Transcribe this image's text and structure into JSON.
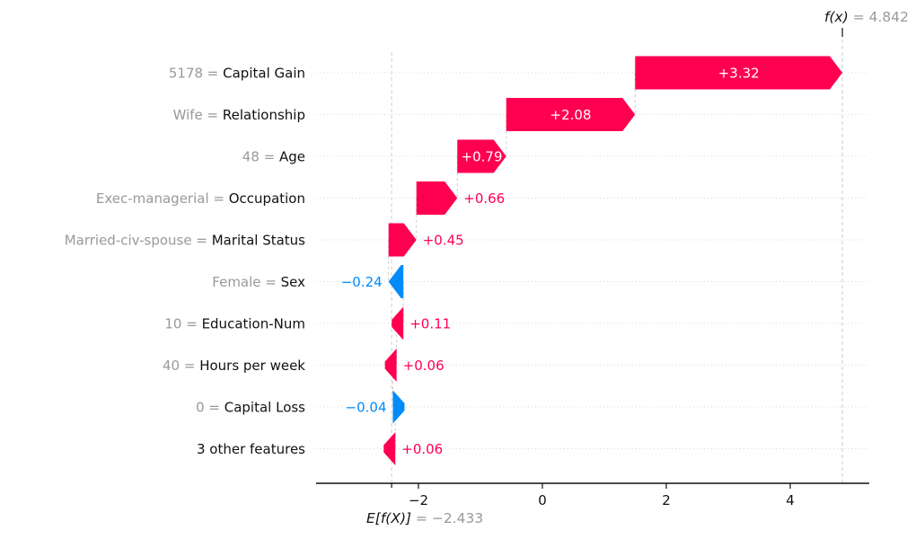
{
  "chart_data": {
    "type": "bar",
    "subtype": "shap-waterfall",
    "title": "",
    "xlabel": "",
    "ylabel": "",
    "xlim": [
      -3.65,
      5.28
    ],
    "grid": "dotted-row-lines",
    "xticks": [
      -2,
      0,
      2,
      4
    ],
    "xtick_labels": [
      "−2",
      "0",
      "2",
      "4"
    ],
    "fx_label": "f(x)",
    "fx_equals": " = 4.842",
    "fx_value": 4.842,
    "base_label": "E[f(X)]",
    "base_equals": " = −2.433",
    "base_value": -2.433,
    "features": [
      {
        "value_label": "5178",
        "name": "Capital Gain",
        "value": 3.32,
        "display": "+3.32"
      },
      {
        "value_label": "Wife",
        "name": "Relationship",
        "value": 2.08,
        "display": "+2.08"
      },
      {
        "value_label": "48",
        "name": "Age",
        "value": 0.79,
        "display": "+0.79"
      },
      {
        "value_label": "Exec-managerial",
        "name": "Occupation",
        "value": 0.66,
        "display": "+0.66"
      },
      {
        "value_label": "Married-civ-spouse",
        "name": "Marital Status",
        "value": 0.45,
        "display": "+0.45"
      },
      {
        "value_label": "Female",
        "name": "Sex",
        "value": -0.24,
        "display": "−0.24"
      },
      {
        "value_label": "10",
        "name": "Education-Num",
        "value": 0.11,
        "display": "+0.11"
      },
      {
        "value_label": "40",
        "name": "Hours per week",
        "value": 0.06,
        "display": "+0.06"
      },
      {
        "value_label": "0",
        "name": "Capital Loss",
        "value": -0.04,
        "display": "−0.04"
      },
      {
        "value_label": null,
        "name": "3 other features",
        "value": 0.06,
        "display": "+0.06"
      }
    ],
    "label_joiner": " = ",
    "colors": {
      "positive": "#ff0051",
      "negative": "#008bfb",
      "inside_label": "#ffffff",
      "feature_value_gray": "#999999",
      "feature_name_black": "#111111",
      "annotation_gray": "#999999",
      "axis_black": "#111111",
      "guide_dash": "#cccccc",
      "row_dots": "#d9d9d9"
    },
    "legend": null
  }
}
